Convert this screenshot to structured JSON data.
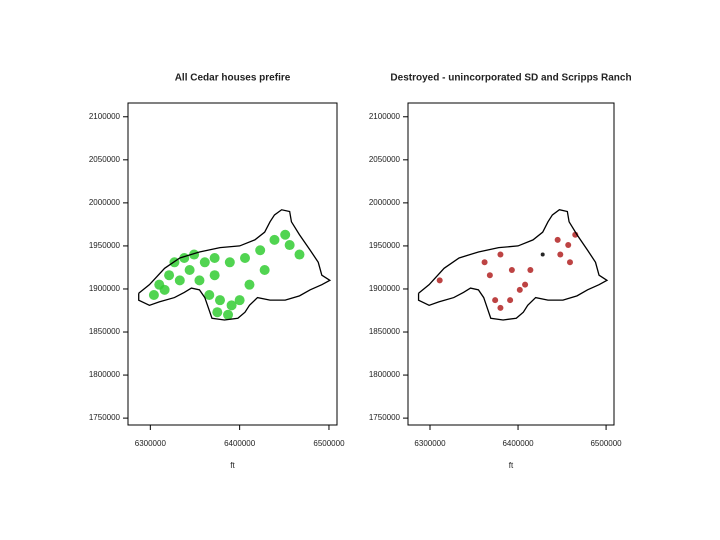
{
  "chart_data": [
    {
      "type": "scatter",
      "title": "All Cedar houses prefire",
      "x_label": "ft",
      "xlim": [
        6275000,
        6509000
      ],
      "ylim": [
        1742000,
        2116000
      ],
      "xticks": [
        6300000,
        6400000,
        6500000
      ],
      "yticks": [
        1750000,
        1800000,
        1850000,
        1900000,
        1950000,
        2000000,
        2050000,
        2100000
      ],
      "series": [
        {
          "style": "points",
          "color": "#33cc33",
          "x": [
            6327000,
            6338000,
            6349000,
            6361000,
            6372000,
            6344000,
            6333000,
            6316000,
            6321000,
            6355000,
            6372000,
            6389000,
            6406000,
            6423000,
            6439000,
            6451000,
            6456000,
            6467000,
            6366000,
            6378000,
            6391000,
            6387000,
            6375000,
            6400000,
            6411000,
            6428000,
            6304000,
            6310000
          ],
          "values": [
            1931000,
            1936000,
            1940000,
            1931000,
            1936000,
            1922000,
            1910000,
            1899000,
            1916000,
            1910000,
            1916000,
            1931000,
            1936000,
            1945000,
            1957000,
            1963000,
            1951000,
            1940000,
            1893000,
            1887000,
            1881000,
            1870000,
            1873000,
            1887000,
            1905000,
            1922000,
            1893000,
            1905000
          ]
        },
        {
          "style": "line",
          "color": "#000000",
          "x": [
            6287000,
            6299000,
            6316000,
            6333000,
            6355000,
            6378000,
            6400000,
            6417000,
            6428000,
            6434000,
            6439000,
            6447000,
            6456000,
            6458000,
            6467000,
            6479000,
            6488000,
            6492000,
            6501000,
            6492000,
            6479000,
            6467000,
            6451000,
            6434000,
            6420000,
            6411000,
            6406000,
            6398000,
            6383000,
            6369000,
            6364000,
            6361000,
            6355000,
            6346000,
            6338000,
            6327000,
            6310000,
            6299000,
            6287000,
            6287000
          ],
          "values": [
            1895000,
            1905000,
            1924000,
            1936000,
            1943000,
            1948000,
            1950000,
            1957000,
            1966000,
            1978000,
            1986000,
            1992000,
            1990000,
            1978000,
            1963000,
            1945000,
            1931000,
            1916000,
            1910000,
            1905000,
            1899000,
            1892000,
            1887000,
            1887000,
            1890000,
            1881000,
            1873000,
            1866000,
            1864000,
            1866000,
            1881000,
            1890000,
            1899000,
            1901000,
            1896000,
            1890000,
            1885000,
            1881000,
            1887000,
            1895000
          ]
        }
      ]
    },
    {
      "type": "scatter",
      "title": "Destroyed - unincorporated SD and Scripps Ranch",
      "x_label": "ft",
      "xlim": [
        6275000,
        6509000
      ],
      "ylim": [
        1742000,
        2116000
      ],
      "xticks": [
        6300000,
        6400000,
        6500000
      ],
      "yticks": [
        1750000,
        1800000,
        1850000,
        1900000,
        1950000,
        2000000,
        2050000,
        2100000
      ],
      "series": [
        {
          "style": "points",
          "color": "#b22222",
          "x": [
            6311000,
            6362000,
            6368000,
            6380000,
            6393000,
            6374000,
            6380000,
            6391000,
            6402000,
            6445000,
            6457000,
            6465000,
            6459000,
            6448000,
            6414000,
            6408000
          ],
          "values": [
            1910000,
            1931000,
            1916000,
            1940000,
            1922000,
            1887000,
            1878000,
            1887000,
            1899000,
            1957000,
            1951000,
            1963000,
            1931000,
            1940000,
            1922000,
            1905000
          ]
        },
        {
          "style": "points",
          "color": "#000000",
          "x": [
            6428000
          ],
          "values": [
            1940000
          ]
        },
        {
          "style": "line",
          "color": "#000000",
          "x": [
            6287000,
            6299000,
            6316000,
            6333000,
            6355000,
            6378000,
            6400000,
            6417000,
            6428000,
            6434000,
            6439000,
            6447000,
            6456000,
            6458000,
            6467000,
            6479000,
            6488000,
            6492000,
            6501000,
            6492000,
            6479000,
            6467000,
            6451000,
            6434000,
            6420000,
            6411000,
            6406000,
            6398000,
            6383000,
            6369000,
            6364000,
            6361000,
            6355000,
            6346000,
            6338000,
            6327000,
            6310000,
            6299000,
            6287000,
            6287000
          ],
          "values": [
            1895000,
            1905000,
            1924000,
            1936000,
            1943000,
            1948000,
            1950000,
            1957000,
            1966000,
            1978000,
            1986000,
            1992000,
            1990000,
            1978000,
            1963000,
            1945000,
            1931000,
            1916000,
            1910000,
            1905000,
            1899000,
            1892000,
            1887000,
            1887000,
            1890000,
            1881000,
            1873000,
            1866000,
            1864000,
            1866000,
            1881000,
            1890000,
            1899000,
            1901000,
            1896000,
            1890000,
            1885000,
            1881000,
            1887000,
            1895000
          ]
        }
      ]
    }
  ]
}
